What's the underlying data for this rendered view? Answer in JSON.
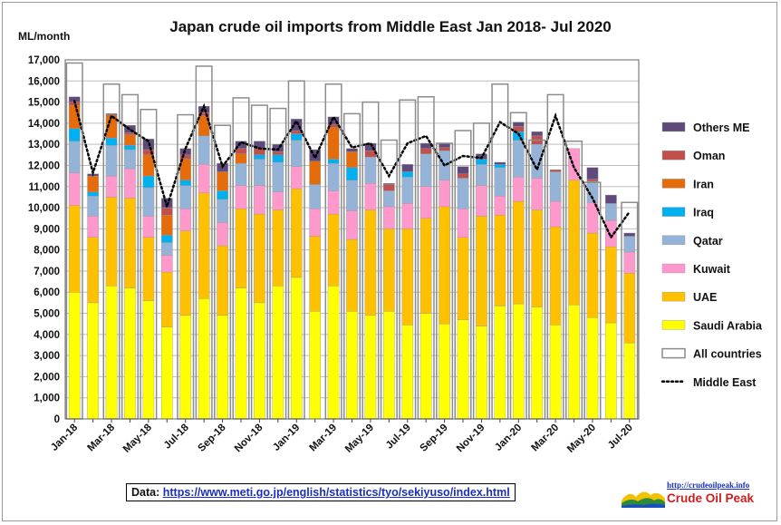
{
  "chart_data": {
    "type": "bar",
    "title": "Japan crude oil imports from Middle East Jan 2018- Jul 2020",
    "ylabel": "ML/month",
    "ylim": [
      0,
      17000
    ],
    "ytick_step": 1000,
    "grid": true,
    "legend_placement": "right",
    "categories": [
      "Jan-18",
      "Feb-18",
      "Mar-18",
      "Apr-18",
      "May-18",
      "Jun-18",
      "Jul-18",
      "Aug-18",
      "Sep-18",
      "Oct-18",
      "Nov-18",
      "Dec-18",
      "Jan-19",
      "Feb-19",
      "Mar-19",
      "Apr-19",
      "May-19",
      "Jun-19",
      "Jul-19",
      "Aug-19",
      "Sep-19",
      "Oct-19",
      "Nov-19",
      "Dec-19",
      "Jan-20",
      "Feb-20",
      "Mar-20",
      "Apr-20",
      "May-20",
      "Jun-20",
      "Jul-20"
    ],
    "x_tick_labels": [
      "Jan-18",
      "Mar-18",
      "May-18",
      "Jul-18",
      "Sep-18",
      "Nov-18",
      "Jan-19",
      "Mar-19",
      "May-19",
      "Jul-19",
      "Sep-19",
      "Nov-19",
      "Jan-20",
      "Mar-20",
      "May-20",
      "Jul-20"
    ],
    "series": [
      {
        "name": "Saudi Arabia",
        "color": "#ffff00",
        "values": [
          6000,
          5500,
          6300,
          6200,
          5600,
          4350,
          4900,
          5700,
          4900,
          6200,
          5500,
          6300,
          6700,
          5100,
          6300,
          5100,
          4900,
          5100,
          4450,
          5000,
          4500,
          4700,
          4400,
          5350,
          5450,
          5300,
          4450,
          5400,
          4800,
          4550,
          3600
        ]
      },
      {
        "name": "UAE",
        "color": "#ffc000",
        "values": [
          4100,
          3100,
          4200,
          4250,
          3000,
          2600,
          4000,
          5000,
          3300,
          3750,
          4200,
          3600,
          4200,
          3550,
          3400,
          3400,
          5000,
          3900,
          4550,
          4500,
          5550,
          3900,
          5200,
          4300,
          4850,
          4600,
          4650,
          5900,
          4000,
          3600,
          3300
        ]
      },
      {
        "name": "Kuwait",
        "color": "#ff99cc",
        "values": [
          1550,
          1000,
          1000,
          1400,
          1000,
          800,
          1050,
          1350,
          1100,
          1100,
          1350,
          850,
          1050,
          1300,
          1100,
          1350,
          1250,
          1050,
          1200,
          1500,
          1250,
          1350,
          1450,
          900,
          1150,
          1500,
          1200,
          1500,
          1450,
          1250,
          1000
        ]
      },
      {
        "name": "Qatar",
        "color": "#95b3d7",
        "values": [
          1500,
          950,
          1450,
          900,
          1350,
          600,
          1100,
          1350,
          1100,
          1050,
          1250,
          1400,
          1250,
          1150,
          1300,
          1450,
          1250,
          750,
          1250,
          1550,
          1400,
          1450,
          1000,
          1350,
          1750,
          1600,
          1400,
          0,
          1000,
          800,
          750
        ]
      },
      {
        "name": "Iraq",
        "color": "#00b0f0",
        "values": [
          600,
          200,
          350,
          200,
          550,
          350,
          250,
          0,
          400,
          0,
          200,
          350,
          300,
          0,
          200,
          600,
          0,
          0,
          250,
          0,
          0,
          0,
          250,
          150,
          400,
          0,
          0,
          0,
          0,
          0,
          0
        ]
      },
      {
        "name": "Iran",
        "color": "#e46c0a",
        "values": [
          1100,
          750,
          1100,
          500,
          1000,
          950,
          1000,
          950,
          900,
          450,
          0,
          0,
          0,
          1100,
          1500,
          750,
          0,
          0,
          0,
          0,
          0,
          0,
          0,
          0,
          0,
          0,
          0,
          0,
          0,
          0,
          0
        ]
      },
      {
        "name": "Oman",
        "color": "#c0504d",
        "values": [
          150,
          0,
          0,
          100,
          250,
          350,
          200,
          150,
          0,
          250,
          300,
          150,
          150,
          0,
          150,
          0,
          300,
          300,
          0,
          250,
          150,
          200,
          0,
          0,
          250,
          400,
          100,
          0,
          100,
          0,
          0
        ]
      },
      {
        "name": "Others ME",
        "color": "#604a7b",
        "values": [
          250,
          100,
          50,
          350,
          500,
          450,
          300,
          300,
          400,
          350,
          350,
          350,
          550,
          550,
          350,
          150,
          350,
          50,
          350,
          250,
          200,
          350,
          250,
          100,
          200,
          200,
          0,
          0,
          550,
          400,
          150
        ]
      },
      {
        "name": "All countries",
        "type": "outline",
        "values": [
          16850,
          null,
          15850,
          15350,
          14650,
          null,
          14400,
          16700,
          13900,
          15200,
          14850,
          14700,
          16000,
          null,
          15850,
          14450,
          15000,
          13200,
          15100,
          15250,
          13050,
          13650,
          14000,
          15850,
          14500,
          13200,
          15350,
          13150,
          11200,
          null,
          10250
        ]
      },
      {
        "name": "Middle East",
        "type": "dotted-line",
        "values": [
          15050,
          11650,
          14350,
          13700,
          13150,
          10050,
          12800,
          14800,
          11950,
          13100,
          12800,
          12750,
          14100,
          12350,
          14300,
          12850,
          13050,
          11500,
          13050,
          13400,
          12000,
          12450,
          12350,
          14050,
          13500,
          11800,
          14350,
          11900,
          10450,
          8600,
          9800
        ]
      }
    ]
  },
  "footer": {
    "data_prefix": "Data: ",
    "data_link": "https://www.meti.go.jp/english/statistics/tyo/sekiyuso/index.html",
    "logo_url": "http://crudeoilpeak.info",
    "logo_name": "Crude Oil Peak"
  }
}
